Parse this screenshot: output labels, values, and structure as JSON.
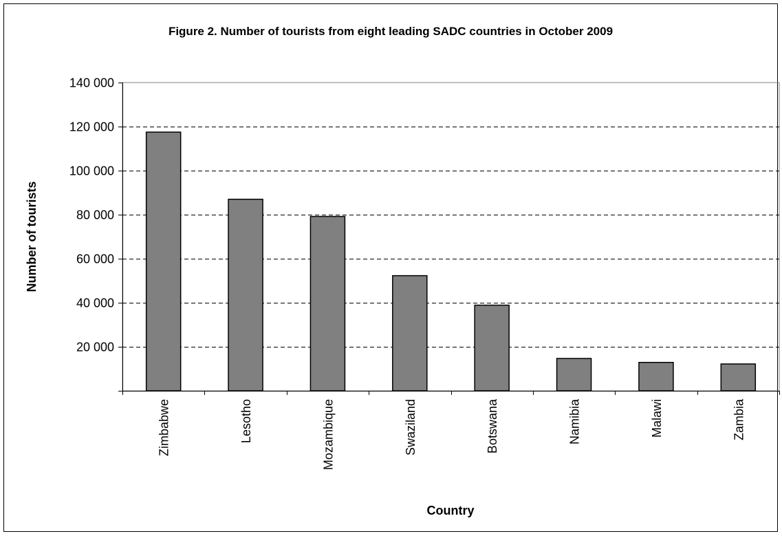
{
  "chart_data": {
    "type": "bar",
    "title": "Figure 2. Number of tourists from eight leading SADC countries in October 2009",
    "xlabel": "Country",
    "ylabel": "Number of tourists",
    "categories": [
      "Zimbabwe",
      "Lesotho",
      "Mozambique",
      "Swaziland",
      "Botswana",
      "Namibia",
      "Malawi",
      "Zambia"
    ],
    "values": [
      117500,
      87000,
      79200,
      52300,
      38900,
      14700,
      12900,
      12200
    ],
    "ylim": [
      0,
      140000
    ],
    "yticks": [
      0,
      20000,
      40000,
      60000,
      80000,
      100000,
      120000,
      140000
    ],
    "ytick_labels": [
      "",
      "20 000",
      "40 000",
      "60 000",
      "80 000",
      "100 000",
      "120 000",
      "140 000"
    ],
    "grid": "horizontal-dashed",
    "legend": "none",
    "bar_color": "#808080",
    "bar_edge_color": "#000000"
  }
}
